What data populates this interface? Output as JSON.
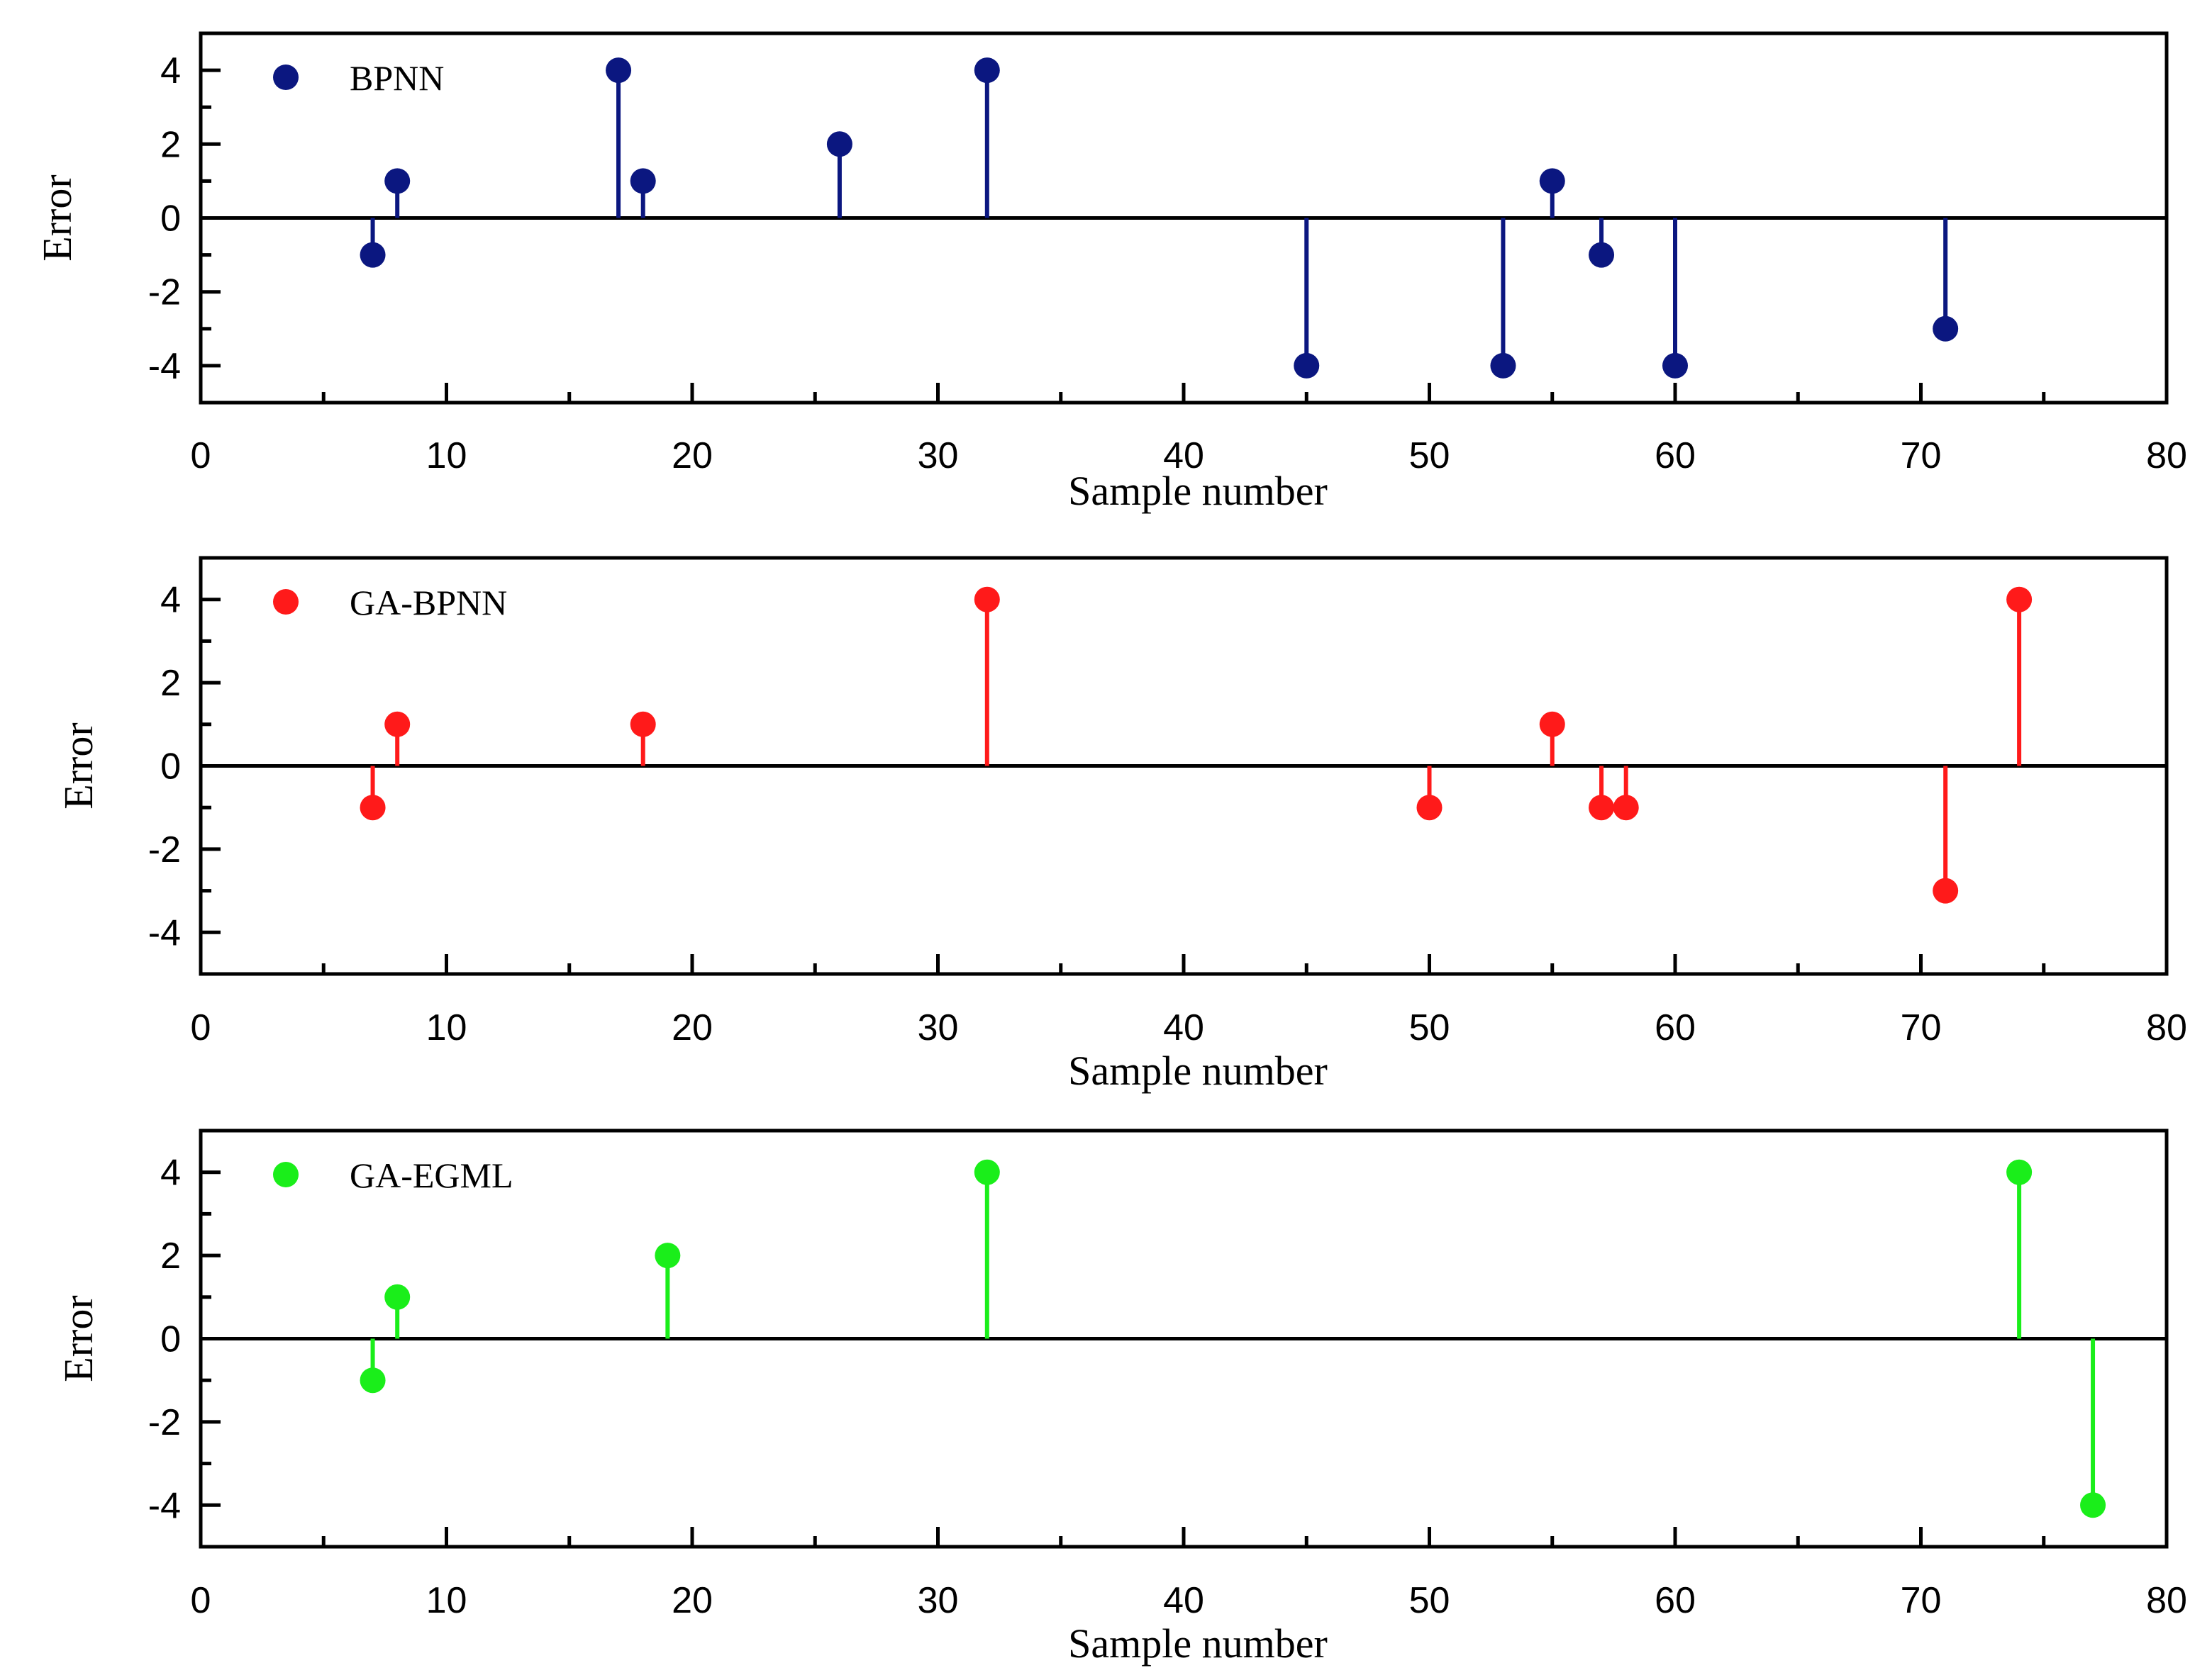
{
  "chart_data": [
    {
      "type": "stem",
      "series_name": "BPNN",
      "color": "#0b1780",
      "xlabel": "Sample number",
      "ylabel": "Error",
      "xlim": [
        0,
        80
      ],
      "ylim": [
        -5,
        5
      ],
      "xticks": [
        0,
        10,
        20,
        30,
        40,
        50,
        60,
        70,
        80
      ],
      "yticks": [
        -4,
        -2,
        0,
        2,
        4
      ],
      "legend": "top-left",
      "points": [
        {
          "x": 7,
          "y": -1
        },
        {
          "x": 8,
          "y": 1
        },
        {
          "x": 17,
          "y": 4
        },
        {
          "x": 18,
          "y": 1
        },
        {
          "x": 26,
          "y": 2
        },
        {
          "x": 32,
          "y": 4
        },
        {
          "x": 45,
          "y": -4
        },
        {
          "x": 53,
          "y": -4
        },
        {
          "x": 55,
          "y": 1
        },
        {
          "x": 57,
          "y": -1
        },
        {
          "x": 60,
          "y": -4
        },
        {
          "x": 71,
          "y": -3
        }
      ]
    },
    {
      "type": "stem",
      "series_name": "GA-BPNN",
      "color": "#ff1a1a",
      "xlabel": "Sample number",
      "ylabel": "Error",
      "xlim": [
        0,
        80
      ],
      "ylim": [
        -5,
        5
      ],
      "xticks": [
        0,
        10,
        20,
        30,
        40,
        50,
        60,
        70,
        80
      ],
      "yticks": [
        -4,
        -2,
        0,
        2,
        4
      ],
      "legend": "top-left",
      "points": [
        {
          "x": 7,
          "y": -1
        },
        {
          "x": 8,
          "y": 1
        },
        {
          "x": 18,
          "y": 1
        },
        {
          "x": 32,
          "y": 4
        },
        {
          "x": 50,
          "y": -1
        },
        {
          "x": 55,
          "y": 1
        },
        {
          "x": 57,
          "y": -1
        },
        {
          "x": 58,
          "y": -1
        },
        {
          "x": 71,
          "y": -3
        },
        {
          "x": 74,
          "y": 4
        }
      ]
    },
    {
      "type": "stem",
      "series_name": "GA-EGML",
      "color": "#1aee1a",
      "xlabel": "Sample number",
      "ylabel": "Error",
      "xlim": [
        0,
        80
      ],
      "ylim": [
        -5,
        5
      ],
      "xticks": [
        0,
        10,
        20,
        30,
        40,
        50,
        60,
        70,
        80
      ],
      "yticks": [
        -4,
        -2,
        0,
        2,
        4
      ],
      "legend": "top-left",
      "points": [
        {
          "x": 7,
          "y": -1
        },
        {
          "x": 8,
          "y": 1
        },
        {
          "x": 19,
          "y": 2
        },
        {
          "x": 32,
          "y": 4
        },
        {
          "x": 74,
          "y": 4
        },
        {
          "x": 77,
          "y": -4
        }
      ]
    }
  ]
}
